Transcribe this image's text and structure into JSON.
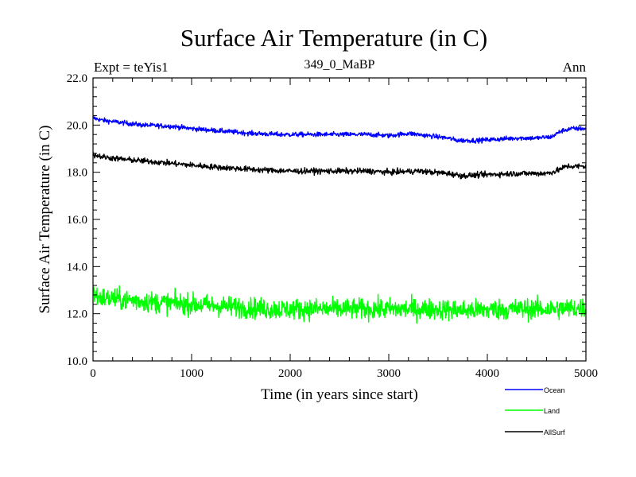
{
  "chart_data": {
    "type": "line",
    "title": "Surface Air Temperature (in C)",
    "subtitle": "349_0_MaBP",
    "expt_label": "Expt = teYis1",
    "season_label": "Ann",
    "xlabel": "Time (in years since start)",
    "ylabel": "Surface Air Temperature (in C)",
    "xlim": [
      0,
      5000
    ],
    "ylim": [
      10.0,
      22.0
    ],
    "x_ticks": [
      0,
      1000,
      2000,
      3000,
      4000,
      5000
    ],
    "x_tick_labels": [
      "0",
      "1000",
      "2000",
      "3000",
      "4000",
      "5000"
    ],
    "y_ticks": [
      10.0,
      12.0,
      14.0,
      16.0,
      18.0,
      20.0,
      22.0
    ],
    "y_tick_labels": [
      "10.0",
      "12.0",
      "14.0",
      "16.0",
      "18.0",
      "20.0",
      "22.0"
    ],
    "grid": false,
    "legend_position": "bottom-right",
    "series": [
      {
        "name": "Ocean",
        "color": "#0000ff",
        "noise": 0.05,
        "x": [
          0,
          100,
          300,
          500,
          800,
          1000,
          1300,
          1600,
          1900,
          2200,
          2500,
          2800,
          3000,
          3200,
          3400,
          3600,
          3700,
          3900,
          4100,
          4300,
          4500,
          4650,
          4750,
          4850,
          5000
        ],
        "values": [
          20.3,
          20.2,
          20.1,
          20.0,
          19.95,
          19.85,
          19.75,
          19.65,
          19.6,
          19.6,
          19.6,
          19.6,
          19.55,
          19.65,
          19.55,
          19.45,
          19.35,
          19.35,
          19.4,
          19.45,
          19.45,
          19.5,
          19.75,
          19.85,
          19.85
        ]
      },
      {
        "name": "Land",
        "color": "#00ff00",
        "noise": 0.22,
        "x": [
          0,
          50,
          300,
          600,
          1000,
          1400,
          1800,
          2200,
          2600,
          3000,
          3400,
          3800,
          4200,
          4600,
          5000
        ],
        "values": [
          12.9,
          12.7,
          12.6,
          12.5,
          12.4,
          12.3,
          12.2,
          12.2,
          12.2,
          12.2,
          12.2,
          12.15,
          12.2,
          12.2,
          12.25
        ]
      },
      {
        "name": "AllSurf",
        "color": "#000000",
        "noise": 0.06,
        "x": [
          0,
          100,
          300,
          600,
          1000,
          1300,
          1700,
          2000,
          2400,
          2800,
          3000,
          3300,
          3600,
          3750,
          4000,
          4300,
          4600,
          4700,
          4800,
          5000
        ],
        "values": [
          18.75,
          18.65,
          18.55,
          18.45,
          18.3,
          18.2,
          18.1,
          18.05,
          18.05,
          18.05,
          18.0,
          18.05,
          17.95,
          17.85,
          17.9,
          17.95,
          17.95,
          18.05,
          18.25,
          18.25
        ]
      }
    ]
  }
}
